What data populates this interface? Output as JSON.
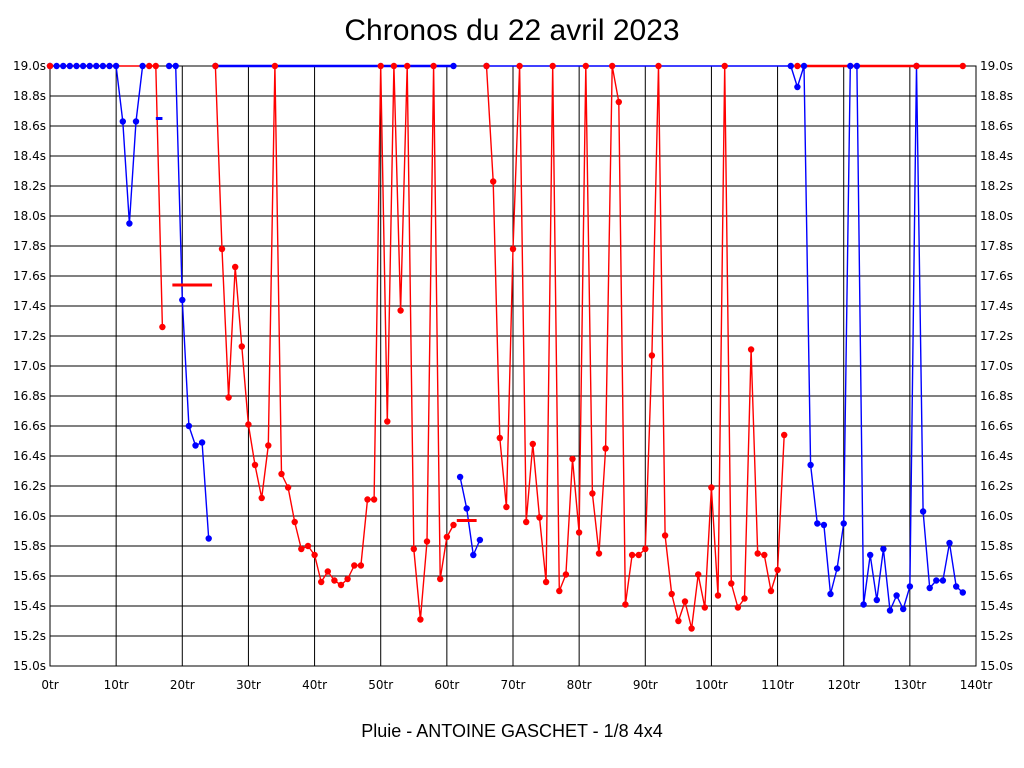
{
  "chart_data": {
    "type": "line",
    "title": "Chronos du 22 avril 2023",
    "subtitle": "Pluie - ANTOINE GASCHET - 1/8 4x4",
    "ylim": [
      15.0,
      19.0
    ],
    "xlim": [
      0,
      140
    ],
    "grid": true,
    "y_ticks": [
      "15.0s",
      "15.2s",
      "15.4s",
      "15.6s",
      "15.8s",
      "16.0s",
      "16.2s",
      "16.4s",
      "16.6s",
      "16.8s",
      "17.0s",
      "17.2s",
      "17.4s",
      "17.6s",
      "17.8s",
      "18.0s",
      "18.2s",
      "18.4s",
      "18.6s",
      "18.8s",
      "19.0s"
    ],
    "x_ticks": [
      "0tr",
      "10tr",
      "20tr",
      "30tr",
      "40tr",
      "50tr",
      "60tr",
      "70tr",
      "80tr",
      "90tr",
      "100tr",
      "110tr",
      "120tr",
      "130tr",
      "140tr"
    ],
    "series": [
      {
        "color": "#0000ff",
        "marker_color": "#0000ff",
        "segments": [
          [
            [
              0,
              19.0
            ],
            [
              1,
              19.0
            ],
            [
              2,
              19.0
            ],
            [
              3,
              19.0
            ],
            [
              4,
              19.0
            ],
            [
              5,
              19.0
            ],
            [
              6,
              19.0
            ],
            [
              7,
              19.0
            ],
            [
              8,
              19.0
            ],
            [
              9,
              19.0
            ],
            [
              10,
              19.0
            ],
            [
              11,
              18.63
            ],
            [
              12,
              17.95
            ],
            [
              13,
              18.63
            ],
            [
              14,
              19.0
            ]
          ],
          [
            [
              18,
              19.0
            ],
            [
              19,
              19.0
            ],
            [
              20,
              17.44
            ],
            [
              21,
              16.6
            ],
            [
              22,
              16.47
            ],
            [
              23,
              16.49
            ],
            [
              24,
              15.85
            ]
          ],
          [
            [
              25,
              19.0
            ],
            [
              61,
              19.0
            ]
          ],
          [
            [
              62,
              16.26
            ],
            [
              63,
              16.05
            ],
            [
              64,
              15.74
            ],
            [
              65,
              15.84
            ]
          ],
          [
            [
              66,
              19.0
            ],
            [
              112,
              19.0
            ],
            [
              113,
              18.86
            ],
            [
              114,
              19.0
            ],
            [
              115,
              16.34
            ],
            [
              116,
              15.95
            ],
            [
              117,
              15.94
            ],
            [
              118,
              15.48
            ],
            [
              119,
              15.65
            ],
            [
              120,
              15.95
            ],
            [
              121,
              19.0
            ],
            [
              122,
              19.0
            ],
            [
              123,
              15.41
            ],
            [
              124,
              15.74
            ],
            [
              125,
              15.44
            ],
            [
              126,
              15.78
            ],
            [
              127,
              15.37
            ],
            [
              128,
              15.47
            ],
            [
              129,
              15.38
            ],
            [
              130,
              15.53
            ],
            [
              131,
              19.0
            ],
            [
              132,
              16.03
            ],
            [
              133,
              15.52
            ],
            [
              134,
              15.57
            ],
            [
              135,
              15.57
            ],
            [
              136,
              15.82
            ],
            [
              137,
              15.53
            ],
            [
              138,
              15.49
            ]
          ]
        ]
      },
      {
        "color": "#ff0000",
        "marker_color": "#ff0000",
        "segments": [
          [
            [
              0,
              19.0
            ],
            [
              15,
              19.0
            ],
            [
              16,
              19.0
            ],
            [
              17,
              17.26
            ]
          ],
          [
            [
              25,
              19.0
            ],
            [
              26,
              17.78
            ],
            [
              27,
              16.79
            ],
            [
              28,
              17.66
            ],
            [
              29,
              17.13
            ],
            [
              30,
              16.61
            ],
            [
              31,
              16.34
            ],
            [
              32,
              16.12
            ],
            [
              33,
              16.47
            ],
            [
              34,
              19.0
            ],
            [
              35,
              16.28
            ],
            [
              36,
              16.19
            ],
            [
              37,
              15.96
            ],
            [
              38,
              15.78
            ],
            [
              39,
              15.8
            ],
            [
              40,
              15.74
            ],
            [
              41,
              15.56
            ],
            [
              42,
              15.63
            ],
            [
              43,
              15.57
            ],
            [
              44,
              15.54
            ],
            [
              45,
              15.58
            ],
            [
              46,
              15.67
            ],
            [
              47,
              15.67
            ],
            [
              48,
              16.11
            ],
            [
              49,
              16.11
            ],
            [
              50,
              19.0
            ],
            [
              51,
              16.63
            ],
            [
              52,
              19.0
            ],
            [
              53,
              17.37
            ],
            [
              54,
              19.0
            ],
            [
              55,
              15.78
            ],
            [
              56,
              15.31
            ],
            [
              57,
              15.83
            ],
            [
              58,
              19.0
            ],
            [
              59,
              15.58
            ],
            [
              60,
              15.86
            ],
            [
              61,
              15.94
            ]
          ],
          [
            [
              66,
              19.0
            ],
            [
              67,
              18.23
            ],
            [
              68,
              16.52
            ],
            [
              69,
              16.06
            ],
            [
              70,
              17.78
            ],
            [
              71,
              19.0
            ],
            [
              72,
              15.96
            ],
            [
              73,
              16.48
            ],
            [
              74,
              15.99
            ],
            [
              75,
              15.56
            ],
            [
              76,
              19.0
            ],
            [
              77,
              15.5
            ],
            [
              78,
              15.61
            ],
            [
              79,
              16.38
            ],
            [
              80,
              15.89
            ],
            [
              81,
              19.0
            ],
            [
              82,
              16.15
            ],
            [
              83,
              15.75
            ],
            [
              84,
              16.45
            ],
            [
              85,
              19.0
            ],
            [
              86,
              18.76
            ],
            [
              87,
              15.41
            ],
            [
              88,
              15.74
            ],
            [
              89,
              15.74
            ],
            [
              90,
              15.78
            ],
            [
              91,
              17.07
            ],
            [
              92,
              19.0
            ],
            [
              93,
              15.87
            ],
            [
              94,
              15.48
            ],
            [
              95,
              15.3
            ],
            [
              96,
              15.43
            ],
            [
              97,
              15.25
            ],
            [
              98,
              15.61
            ],
            [
              99,
              15.39
            ],
            [
              100,
              16.19
            ],
            [
              101,
              15.47
            ],
            [
              102,
              19.0
            ],
            [
              103,
              15.55
            ],
            [
              104,
              15.39
            ],
            [
              105,
              15.45
            ],
            [
              106,
              17.11
            ],
            [
              107,
              15.75
            ],
            [
              108,
              15.74
            ],
            [
              109,
              15.5
            ],
            [
              110,
              15.64
            ],
            [
              111,
              16.54
            ]
          ],
          [
            [
              113,
              19.0
            ],
            [
              131,
              19.0
            ],
            [
              138,
              19.0
            ]
          ]
        ]
      }
    ],
    "average_marks": [
      {
        "color": "#0000ff",
        "x": [
          16,
          17
        ],
        "y": 18.65
      },
      {
        "color": "#ff0000",
        "x": [
          18.5,
          24.5
        ],
        "y": 17.54
      },
      {
        "color": "#ff0000",
        "x": [
          61.5,
          64.5
        ],
        "y": 15.97
      }
    ]
  }
}
